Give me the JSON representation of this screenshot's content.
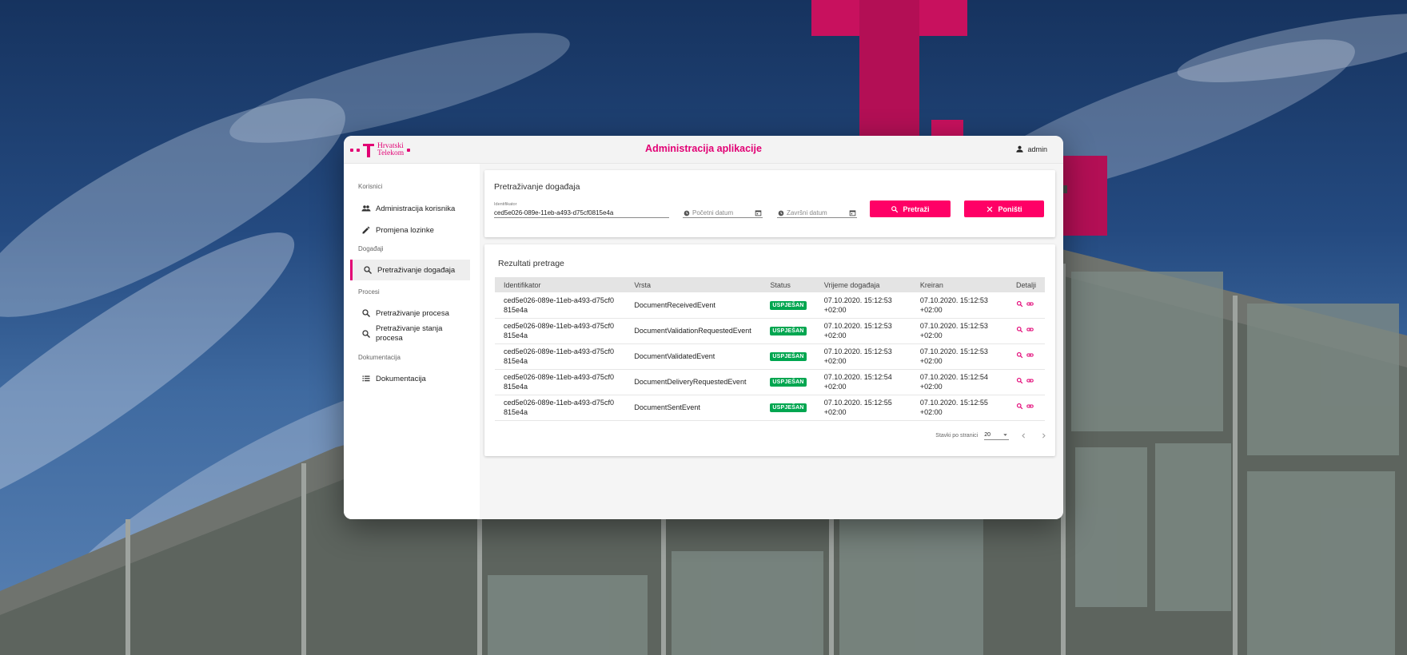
{
  "header": {
    "logo_line1": "Hrvatski",
    "logo_line2": "Telekom",
    "title": "Administracija aplikacije",
    "user": "admin"
  },
  "sidebar": {
    "sections": [
      {
        "label": "Korisnici"
      },
      {
        "label": "Događaji"
      },
      {
        "label": "Procesi"
      },
      {
        "label": "Dokumentacija"
      }
    ],
    "items": [
      {
        "label": "Administracija korisnika",
        "icon": "users-icon"
      },
      {
        "label": "Promjena lozinke",
        "icon": "pencil-icon"
      },
      {
        "label": "Pretraživanje događaja",
        "icon": "search-icon",
        "active": true
      },
      {
        "label": "Pretraživanje procesa",
        "icon": "search-icon"
      },
      {
        "label": "Pretraživanje stanja procesa",
        "icon": "search-icon"
      },
      {
        "label": "Dokumentacija",
        "icon": "list-icon"
      }
    ]
  },
  "search": {
    "title": "Pretraživanje događaja",
    "identifier_label": "Identifikator",
    "identifier_value": "ced5e026-089e-11eb-a493-d75cf0815e4a",
    "start_date_placeholder": "Početni datum",
    "end_date_placeholder": "Završni datum",
    "search_button": "Pretraži",
    "reset_button": "Poništi",
    "accent": "#ff0066"
  },
  "results": {
    "title": "Rezultati pretrage",
    "columns": [
      "Identifikator",
      "Vrsta",
      "Status",
      "Vrijeme događaja",
      "Kreiran",
      "Detalji"
    ],
    "rows": [
      {
        "id": "ced5e026-089e-11eb-a493-d75cf0815e4a",
        "type": "DocumentReceivedEvent",
        "status": "USPJEŠAN",
        "time": "07.10.2020. 15:12:53 +02:00",
        "created": "07.10.2020. 15:12:53 +02:00"
      },
      {
        "id": "ced5e026-089e-11eb-a493-d75cf0815e4a",
        "type": "DocumentValidationRequestedEvent",
        "status": "USPJEŠAN",
        "time": "07.10.2020. 15:12:53 +02:00",
        "created": "07.10.2020. 15:12:53 +02:00"
      },
      {
        "id": "ced5e026-089e-11eb-a493-d75cf0815e4a",
        "type": "DocumentValidatedEvent",
        "status": "USPJEŠAN",
        "time": "07.10.2020. 15:12:53 +02:00",
        "created": "07.10.2020. 15:12:53 +02:00"
      },
      {
        "id": "ced5e026-089e-11eb-a493-d75cf0815e4a",
        "type": "DocumentDeliveryRequestedEvent",
        "status": "USPJEŠAN",
        "time": "07.10.2020. 15:12:54 +02:00",
        "created": "07.10.2020. 15:12:54 +02:00"
      },
      {
        "id": "ced5e026-089e-11eb-a493-d75cf0815e4a",
        "type": "DocumentSentEvent",
        "status": "USPJEŠAN",
        "time": "07.10.2020. 15:12:55 +02:00",
        "created": "07.10.2020. 15:12:55 +02:00"
      }
    ],
    "pager_label": "Stavki po stranici",
    "page_size": "20",
    "status_color": "#00a650"
  }
}
